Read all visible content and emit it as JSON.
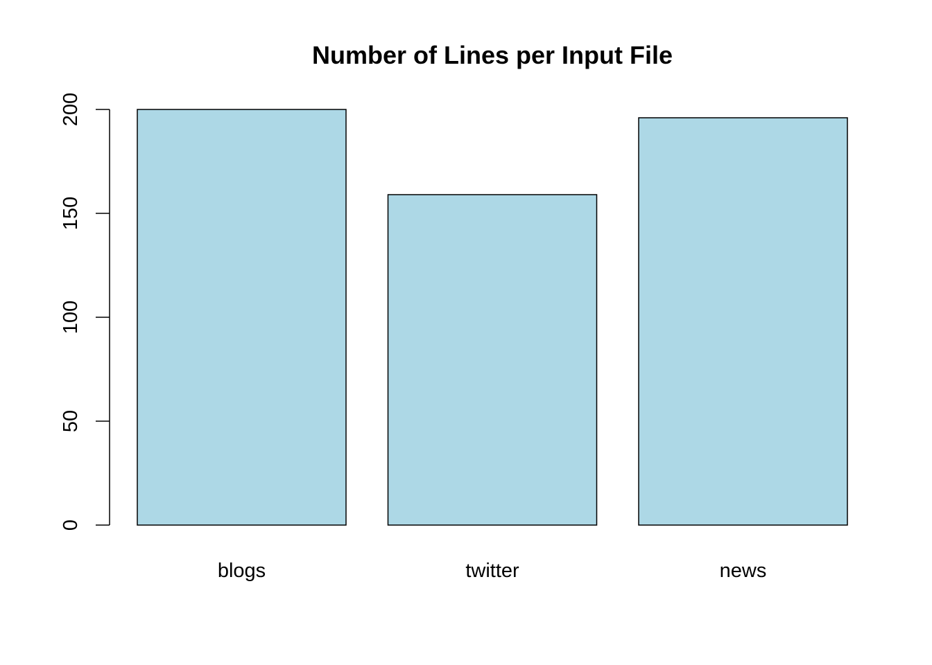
{
  "chart_data": {
    "type": "bar",
    "title": "Number of Lines per Input File",
    "xlabel": "",
    "ylabel": "",
    "categories": [
      "blogs",
      "twitter",
      "news"
    ],
    "values": [
      200,
      159,
      196
    ],
    "ylim": [
      0,
      200
    ],
    "y_ticks": [
      "0",
      "50",
      "100",
      "150",
      "200"
    ],
    "bar_color": "#add8e6",
    "grid": false,
    "legend": "none"
  }
}
